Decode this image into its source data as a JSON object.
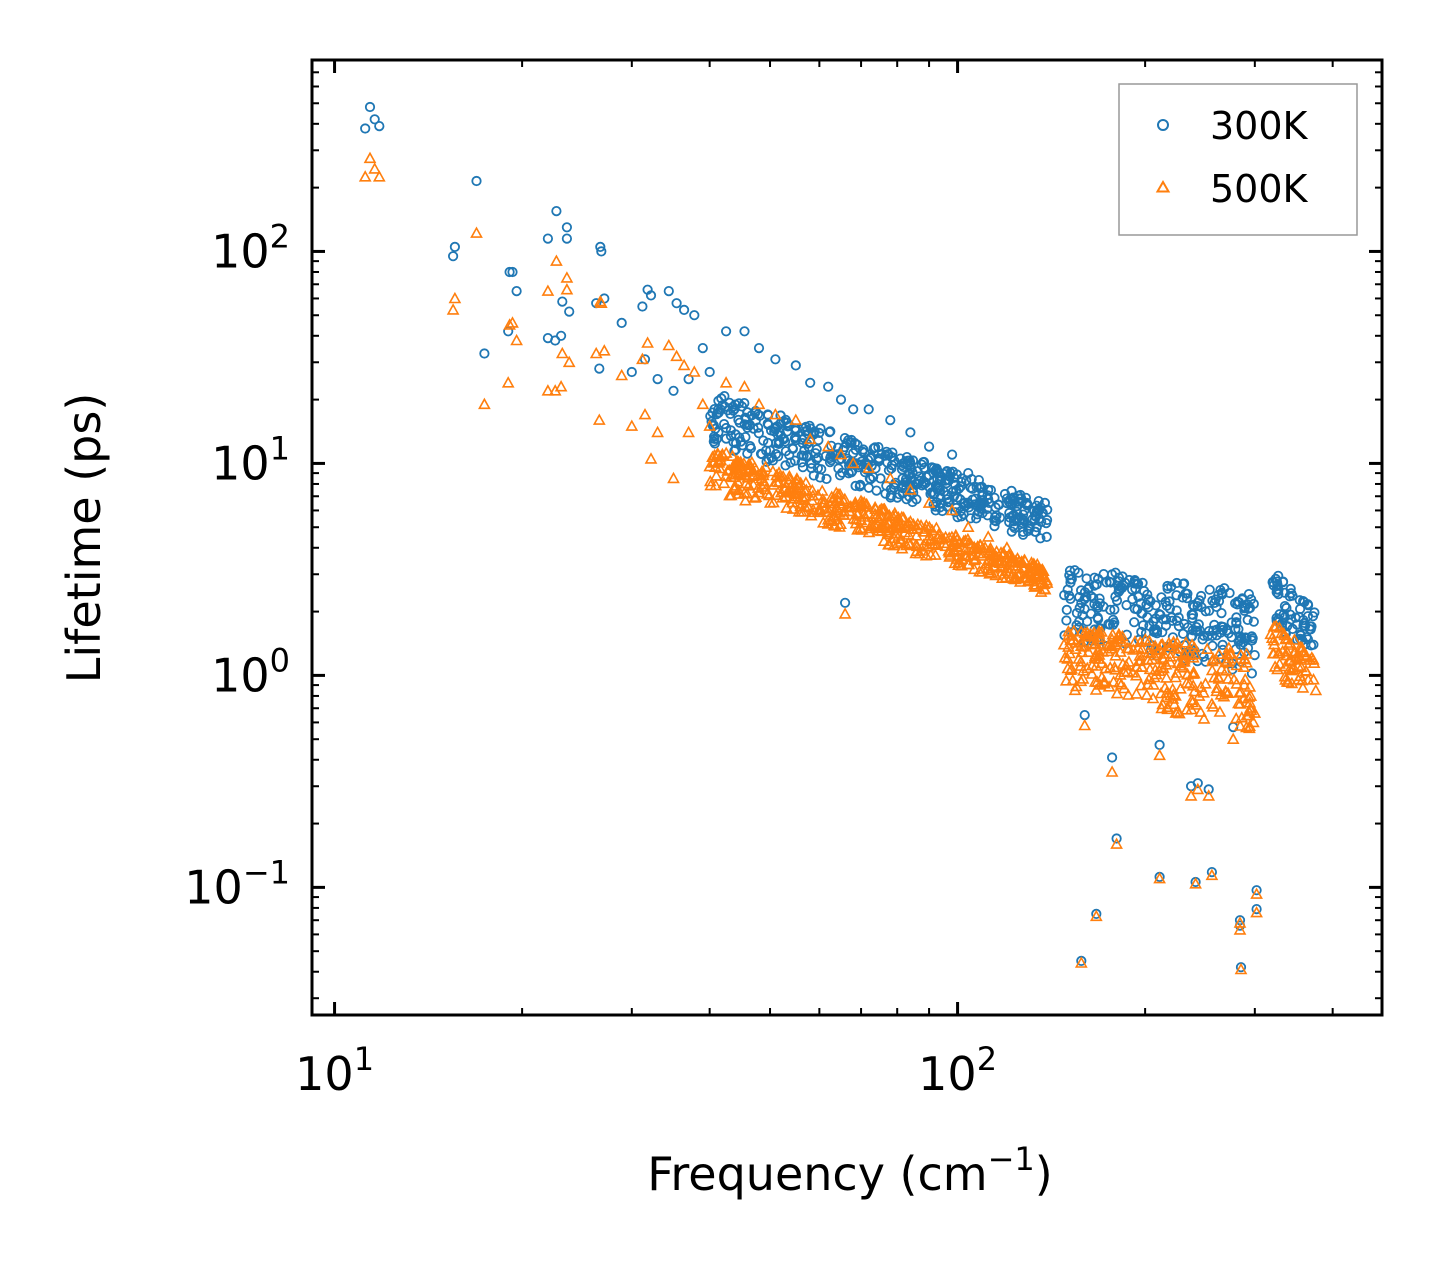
{
  "chart_data": {
    "type": "scatter",
    "xscale": "log",
    "yscale": "log",
    "xlabel": "Frequency (cm",
    "xlabel_sup": "−1",
    "xlabel_suffix": ")",
    "ylabel": "Lifetime (ps)",
    "xlim": [
      9.2,
      480
    ],
    "ylim": [
      0.025,
      800
    ],
    "x_ticks": [
      {
        "value": 10,
        "base": "10",
        "exp": "1"
      },
      {
        "value": 100,
        "base": "10",
        "exp": "2"
      }
    ],
    "y_ticks": [
      {
        "value": 0.1,
        "base": "10",
        "exp": "−1"
      },
      {
        "value": 1,
        "base": "10",
        "exp": "0"
      },
      {
        "value": 10,
        "base": "10",
        "exp": "1"
      },
      {
        "value": 100,
        "base": "10",
        "exp": "2"
      }
    ],
    "legend": {
      "position": "top-right"
    },
    "series": [
      {
        "name": "300K",
        "marker": "circle",
        "color": "#1f77b4",
        "anchors": [
          {
            "x": 11.2,
            "y": 380
          },
          {
            "x": 11.4,
            "y": 480
          },
          {
            "x": 11.6,
            "y": 420
          },
          {
            "x": 11.8,
            "y": 390
          },
          {
            "x": 15.5,
            "y": 95
          },
          {
            "x": 15.6,
            "y": 105
          },
          {
            "x": 16.9,
            "y": 215
          },
          {
            "x": 17.4,
            "y": 33
          },
          {
            "x": 19.1,
            "y": 80
          },
          {
            "x": 19.3,
            "y": 80
          },
          {
            "x": 19.6,
            "y": 65
          },
          {
            "x": 19.0,
            "y": 42
          },
          {
            "x": 22.0,
            "y": 115
          },
          {
            "x": 22.7,
            "y": 155
          },
          {
            "x": 23.6,
            "y": 130
          },
          {
            "x": 23.6,
            "y": 115
          },
          {
            "x": 23.2,
            "y": 58
          },
          {
            "x": 23.8,
            "y": 52
          },
          {
            "x": 22.0,
            "y": 39
          },
          {
            "x": 22.6,
            "y": 38
          },
          {
            "x": 23.1,
            "y": 40
          },
          {
            "x": 26.7,
            "y": 105
          },
          {
            "x": 26.8,
            "y": 100
          },
          {
            "x": 26.3,
            "y": 57
          },
          {
            "x": 27.1,
            "y": 60
          },
          {
            "x": 26.6,
            "y": 28
          },
          {
            "x": 28.9,
            "y": 46
          },
          {
            "x": 30.0,
            "y": 27
          },
          {
            "x": 31.2,
            "y": 55
          },
          {
            "x": 31.8,
            "y": 66
          },
          {
            "x": 32.2,
            "y": 62
          },
          {
            "x": 34.4,
            "y": 65
          },
          {
            "x": 35.4,
            "y": 57
          },
          {
            "x": 36.4,
            "y": 53
          },
          {
            "x": 37.8,
            "y": 50
          },
          {
            "x": 31.5,
            "y": 31
          },
          {
            "x": 33.0,
            "y": 25
          },
          {
            "x": 35.0,
            "y": 22
          },
          {
            "x": 37.0,
            "y": 25
          },
          {
            "x": 39.0,
            "y": 35
          },
          {
            "x": 40.0,
            "y": 27
          },
          {
            "x": 42.5,
            "y": 42
          },
          {
            "x": 45.5,
            "y": 42
          },
          {
            "x": 48.0,
            "y": 35
          },
          {
            "x": 51.0,
            "y": 31
          },
          {
            "x": 55.0,
            "y": 29
          },
          {
            "x": 58.0,
            "y": 24
          },
          {
            "x": 62.0,
            "y": 23
          },
          {
            "x": 65.0,
            "y": 20
          },
          {
            "x": 68.0,
            "y": 18
          },
          {
            "x": 72.0,
            "y": 18
          },
          {
            "x": 78.0,
            "y": 16
          },
          {
            "x": 84.0,
            "y": 14
          },
          {
            "x": 90.0,
            "y": 12
          },
          {
            "x": 98.0,
            "y": 11
          },
          {
            "x": 104.0,
            "y": 9
          },
          {
            "x": 112.0,
            "y": 7.5
          },
          {
            "x": 120.0,
            "y": 6.5
          },
          {
            "x": 128.0,
            "y": 6
          },
          {
            "x": 134.0,
            "y": 5
          },
          {
            "x": 139.0,
            "y": 4.5
          },
          {
            "x": 66.0,
            "y": 2.2
          },
          {
            "x": 160.0,
            "y": 0.65
          },
          {
            "x": 177.0,
            "y": 0.41
          },
          {
            "x": 180.0,
            "y": 0.17
          },
          {
            "x": 211.0,
            "y": 0.47
          },
          {
            "x": 237.0,
            "y": 0.3
          },
          {
            "x": 243.0,
            "y": 0.31
          },
          {
            "x": 253.0,
            "y": 0.29
          },
          {
            "x": 277.0,
            "y": 0.57
          },
          {
            "x": 167.0,
            "y": 0.075
          },
          {
            "x": 158.0,
            "y": 0.045
          },
          {
            "x": 211.0,
            "y": 0.112
          },
          {
            "x": 241.0,
            "y": 0.106
          },
          {
            "x": 256.0,
            "y": 0.118
          },
          {
            "x": 284.0,
            "y": 0.07
          },
          {
            "x": 284.0,
            "y": 0.066
          },
          {
            "x": 285.0,
            "y": 0.042
          },
          {
            "x": 302.0,
            "y": 0.097
          },
          {
            "x": 302.0,
            "y": 0.079
          }
        ],
        "bands": [
          {
            "x_from": 40.0,
            "x_to": 140.0,
            "y_top_from": 22,
            "y_top_to": 6.5,
            "y_bottom_from": 12,
            "y_bottom_to": 4.2
          },
          {
            "x_from": 148.0,
            "x_to": 300.0,
            "y_top_from": 3.3,
            "y_top_to": 2.5,
            "y_bottom_from": 1.5,
            "y_bottom_to": 1.0
          },
          {
            "x_from": 318.0,
            "x_to": 376.0,
            "y_top_from": 3.2,
            "y_top_to": 2.0,
            "y_bottom_from": 1.7,
            "y_bottom_to": 1.3
          }
        ]
      },
      {
        "name": "500K",
        "marker": "triangle",
        "color": "#ff7f0e",
        "anchors": [
          {
            "x": 11.2,
            "y": 225
          },
          {
            "x": 11.4,
            "y": 275
          },
          {
            "x": 11.6,
            "y": 245
          },
          {
            "x": 11.8,
            "y": 225
          },
          {
            "x": 15.5,
            "y": 53
          },
          {
            "x": 15.6,
            "y": 60
          },
          {
            "x": 16.9,
            "y": 122
          },
          {
            "x": 17.4,
            "y": 19
          },
          {
            "x": 19.1,
            "y": 45
          },
          {
            "x": 19.3,
            "y": 46
          },
          {
            "x": 19.6,
            "y": 38
          },
          {
            "x": 19.0,
            "y": 24
          },
          {
            "x": 22.0,
            "y": 65
          },
          {
            "x": 22.7,
            "y": 90
          },
          {
            "x": 23.6,
            "y": 75
          },
          {
            "x": 23.6,
            "y": 66
          },
          {
            "x": 23.2,
            "y": 33
          },
          {
            "x": 23.8,
            "y": 30
          },
          {
            "x": 22.0,
            "y": 22
          },
          {
            "x": 22.6,
            "y": 22
          },
          {
            "x": 23.1,
            "y": 23
          },
          {
            "x": 26.7,
            "y": 58
          },
          {
            "x": 26.8,
            "y": 57
          },
          {
            "x": 26.3,
            "y": 33
          },
          {
            "x": 27.1,
            "y": 34
          },
          {
            "x": 26.6,
            "y": 16
          },
          {
            "x": 28.9,
            "y": 26
          },
          {
            "x": 30.0,
            "y": 15
          },
          {
            "x": 31.2,
            "y": 31
          },
          {
            "x": 31.8,
            "y": 37
          },
          {
            "x": 32.2,
            "y": 10.5
          },
          {
            "x": 34.4,
            "y": 36
          },
          {
            "x": 35.4,
            "y": 32
          },
          {
            "x": 36.4,
            "y": 29
          },
          {
            "x": 37.8,
            "y": 27
          },
          {
            "x": 31.5,
            "y": 17
          },
          {
            "x": 33.0,
            "y": 14
          },
          {
            "x": 35.0,
            "y": 8.5
          },
          {
            "x": 37.0,
            "y": 14
          },
          {
            "x": 39.0,
            "y": 19
          },
          {
            "x": 40.0,
            "y": 15
          },
          {
            "x": 42.5,
            "y": 24
          },
          {
            "x": 45.5,
            "y": 23
          },
          {
            "x": 48.0,
            "y": 19
          },
          {
            "x": 51.0,
            "y": 17
          },
          {
            "x": 55.0,
            "y": 16
          },
          {
            "x": 58.0,
            "y": 13
          },
          {
            "x": 62.0,
            "y": 12
          },
          {
            "x": 65.0,
            "y": 11
          },
          {
            "x": 68.0,
            "y": 10
          },
          {
            "x": 72.0,
            "y": 9.5
          },
          {
            "x": 78.0,
            "y": 8.5
          },
          {
            "x": 84.0,
            "y": 7.5
          },
          {
            "x": 90.0,
            "y": 6.5
          },
          {
            "x": 98.0,
            "y": 6
          },
          {
            "x": 104.0,
            "y": 5
          },
          {
            "x": 112.0,
            "y": 4.5
          },
          {
            "x": 120.0,
            "y": 4
          },
          {
            "x": 128.0,
            "y": 3.5
          },
          {
            "x": 134.0,
            "y": 3.2
          },
          {
            "x": 139.0,
            "y": 2.8
          },
          {
            "x": 66.0,
            "y": 1.95
          },
          {
            "x": 160.0,
            "y": 0.58
          },
          {
            "x": 177.0,
            "y": 0.35
          },
          {
            "x": 180.0,
            "y": 0.16
          },
          {
            "x": 211.0,
            "y": 0.42
          },
          {
            "x": 237.0,
            "y": 0.27
          },
          {
            "x": 243.0,
            "y": 0.29
          },
          {
            "x": 253.0,
            "y": 0.27
          },
          {
            "x": 277.0,
            "y": 0.5
          },
          {
            "x": 167.0,
            "y": 0.073
          },
          {
            "x": 158.0,
            "y": 0.044
          },
          {
            "x": 211.0,
            "y": 0.11
          },
          {
            "x": 241.0,
            "y": 0.104
          },
          {
            "x": 256.0,
            "y": 0.114
          },
          {
            "x": 284.0,
            "y": 0.068
          },
          {
            "x": 284.0,
            "y": 0.063
          },
          {
            "x": 285.0,
            "y": 0.041
          },
          {
            "x": 302.0,
            "y": 0.093
          },
          {
            "x": 302.0,
            "y": 0.076
          }
        ],
        "bands": [
          {
            "x_from": 40.0,
            "x_to": 140.0,
            "y_top_from": 12,
            "y_top_to": 3.2,
            "y_bottom_from": 7.5,
            "y_bottom_to": 2.4
          },
          {
            "x_from": 148.0,
            "x_to": 300.0,
            "y_top_from": 1.7,
            "y_top_to": 1.3,
            "y_bottom_from": 0.85,
            "y_bottom_to": 0.55
          },
          {
            "x_from": 318.0,
            "x_to": 376.0,
            "y_top_from": 1.85,
            "y_top_to": 1.2,
            "y_bottom_from": 1.0,
            "y_bottom_to": 0.75
          }
        ]
      }
    ]
  }
}
